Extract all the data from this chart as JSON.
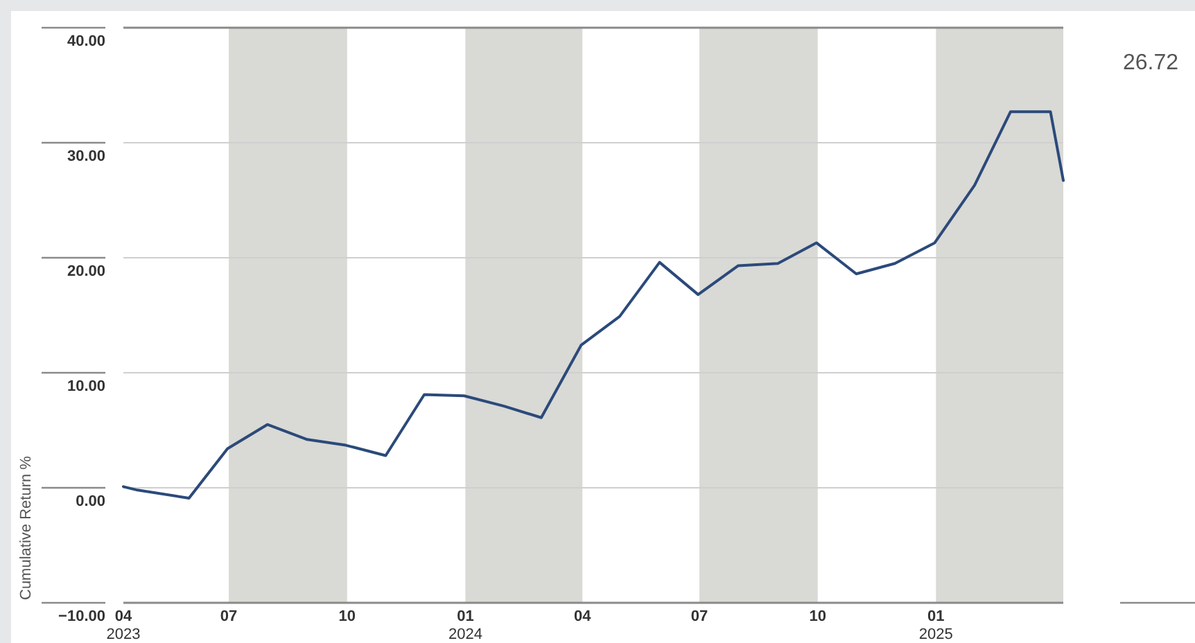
{
  "chart_data": {
    "type": "line",
    "ylabel": "Cumulative Return %",
    "x": [
      "2023-04-10",
      "2023-04-21",
      "2023-05-31",
      "2023-06-30",
      "2023-07-31",
      "2023-08-31",
      "2023-09-30",
      "2023-10-31",
      "2023-11-30",
      "2023-12-31",
      "2024-01-31",
      "2024-02-29",
      "2024-03-31",
      "2024-04-30",
      "2024-05-31",
      "2024-06-30",
      "2024-07-31",
      "2024-08-31",
      "2024-09-30",
      "2024-10-31",
      "2024-11-30",
      "2024-12-31",
      "2025-01-31",
      "2025-02-28",
      "2025-03-31",
      "2025-04-10"
    ],
    "series": [
      {
        "color": "#2b4a7a",
        "values": [
          0.1,
          -0.2,
          -0.9,
          3.4,
          5.5,
          4.2,
          3.7,
          2.8,
          8.1,
          8.0,
          7.1,
          6.1,
          12.4,
          14.9,
          19.6,
          16.8,
          19.3,
          19.5,
          21.3,
          18.6,
          19.5,
          21.3,
          26.3,
          32.7,
          32.7,
          26.72
        ]
      }
    ],
    "xlim": [
      "2023-04-10",
      "2025-04-10"
    ],
    "xticks": [
      {
        "value": "2023-04-10",
        "label": "04\n2023"
      },
      {
        "value": "2023-07-01",
        "label": "07"
      },
      {
        "value": "2023-10-01",
        "label": "10"
      },
      {
        "value": "2024-01-01",
        "label": "01\n2024"
      },
      {
        "value": "2024-04-01",
        "label": "04"
      },
      {
        "value": "2024-07-01",
        "label": "07"
      },
      {
        "value": "2024-10-01",
        "label": "10"
      },
      {
        "value": "2025-01-01",
        "label": "01\n2025"
      }
    ],
    "ylim": [
      -10,
      40
    ],
    "yticks": [
      {
        "value": -10,
        "label": "−10.00"
      },
      {
        "value": 0,
        "label": "0.00"
      },
      {
        "value": 10,
        "label": "10.00"
      },
      {
        "value": 20,
        "label": "20.00"
      },
      {
        "value": 30,
        "label": "30.00"
      },
      {
        "value": 40,
        "label": "40.00"
      }
    ],
    "bands": [
      {
        "axis": "x",
        "from": "2023-07-01",
        "to": "2023-10-01",
        "color": "#d9d9d5"
      },
      {
        "axis": "x",
        "from": "2024-01-01",
        "to": "2024-04-01",
        "color": "#d9d9d5"
      },
      {
        "axis": "x",
        "from": "2024-07-01",
        "to": "2024-10-01",
        "color": "#d9d9d5"
      },
      {
        "axis": "x",
        "from": "2025-01-01",
        "to": "2025-04-10",
        "color": "#d9d9d5"
      }
    ],
    "annotations": [
      "26.72"
    ],
    "grid": "y",
    "legend": false,
    "marker": "none",
    "line_style": "solid"
  }
}
